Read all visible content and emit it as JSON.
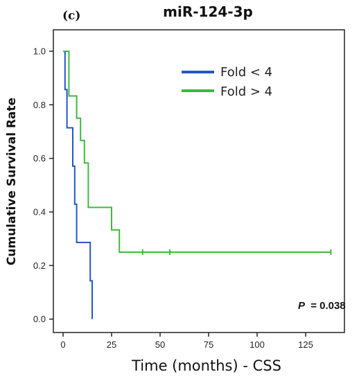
{
  "chart_data": {
    "type": "line",
    "panel_label": "(c)",
    "title": "miR-124-3p",
    "xlabel": "Time (months) - CSS",
    "ylabel": "Cumulative Survival Rate",
    "xlim": [
      -5,
      145
    ],
    "ylim": [
      -0.05,
      1.08
    ],
    "xticks": [
      0,
      25,
      50,
      75,
      100,
      125
    ],
    "yticks": [
      0.0,
      0.2,
      0.4,
      0.6,
      0.8,
      1.0
    ],
    "ytick_labels": [
      "0.0",
      "0.2",
      "0.4",
      "0.6",
      "0.8",
      "1.0"
    ],
    "legend_position": "top-right",
    "series": [
      {
        "name": "Fold < 4",
        "color": "#2456c8",
        "steps": [
          [
            0,
            1.0
          ],
          [
            1,
            0.857
          ],
          [
            2,
            0.714
          ],
          [
            5,
            0.571
          ],
          [
            6,
            0.429
          ],
          [
            7,
            0.286
          ],
          [
            14,
            0.143
          ],
          [
            15,
            0.0
          ]
        ],
        "censored": []
      },
      {
        "name": "Fold > 4",
        "color": "#3cba3c",
        "steps": [
          [
            0,
            1.0
          ],
          [
            3,
            0.833
          ],
          [
            7,
            0.75
          ],
          [
            9,
            0.667
          ],
          [
            11,
            0.583
          ],
          [
            13,
            0.417
          ],
          [
            25,
            0.333
          ],
          [
            29,
            0.25
          ],
          [
            138,
            0.25
          ]
        ],
        "censored": [
          41,
          55,
          138
        ]
      }
    ],
    "annotation": {
      "p_label": "P",
      "p_value": "= 0.038"
    }
  }
}
